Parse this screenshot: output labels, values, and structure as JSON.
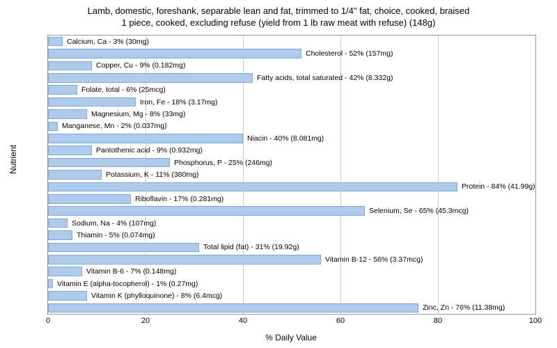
{
  "title_line1": "Lamb, domestic, foreshank, separable lean and fat, trimmed to 1/4\" fat, choice, cooked, braised",
  "title_line2": "1 piece, cooked, excluding refuse (yield from 1 lb raw meat with refuse) (148g)",
  "y_axis_label": "Nutrient",
  "x_axis_label": "% Daily Value",
  "chart": {
    "type": "bar",
    "orientation": "horizontal",
    "xlim": [
      0,
      100
    ],
    "xtick_step": 20,
    "bar_color": "#aecbeb",
    "bar_border_color": "#7fa8d9",
    "grid_color": "#cccccc",
    "background_color": "#ffffff",
    "label_fontsize": 10.5,
    "title_fontsize": 13,
    "axis_fontsize": 12,
    "items": [
      {
        "label": "Calcium, Ca - 3% (30mg)",
        "value": 3
      },
      {
        "label": "Cholesterol - 52% (157mg)",
        "value": 52
      },
      {
        "label": "Copper, Cu - 9% (0.182mg)",
        "value": 9
      },
      {
        "label": "Fatty acids, total saturated - 42% (8.332g)",
        "value": 42
      },
      {
        "label": "Folate, total - 6% (25mcg)",
        "value": 6
      },
      {
        "label": "Iron, Fe - 18% (3.17mg)",
        "value": 18
      },
      {
        "label": "Magnesium, Mg - 8% (33mg)",
        "value": 8
      },
      {
        "label": "Manganese, Mn - 2% (0.037mg)",
        "value": 2
      },
      {
        "label": "Niacin - 40% (8.081mg)",
        "value": 40
      },
      {
        "label": "Pantothenic acid - 9% (0.932mg)",
        "value": 9
      },
      {
        "label": "Phosphorus, P - 25% (246mg)",
        "value": 25
      },
      {
        "label": "Potassium, K - 11% (380mg)",
        "value": 11
      },
      {
        "label": "Protein - 84% (41.99g)",
        "value": 84
      },
      {
        "label": "Riboflavin - 17% (0.281mg)",
        "value": 17
      },
      {
        "label": "Selenium, Se - 65% (45.3mcg)",
        "value": 65
      },
      {
        "label": "Sodium, Na - 4% (107mg)",
        "value": 4
      },
      {
        "label": "Thiamin - 5% (0.074mg)",
        "value": 5
      },
      {
        "label": "Total lipid (fat) - 31% (19.92g)",
        "value": 31
      },
      {
        "label": "Vitamin B-12 - 56% (3.37mcg)",
        "value": 56
      },
      {
        "label": "Vitamin B-6 - 7% (0.148mg)",
        "value": 7
      },
      {
        "label": "Vitamin E (alpha-tocopherol) - 1% (0.27mg)",
        "value": 1
      },
      {
        "label": "Vitamin K (phylloquinone) - 8% (6.4mcg)",
        "value": 8
      },
      {
        "label": "Zinc, Zn - 76% (11.38mg)",
        "value": 76
      }
    ]
  }
}
